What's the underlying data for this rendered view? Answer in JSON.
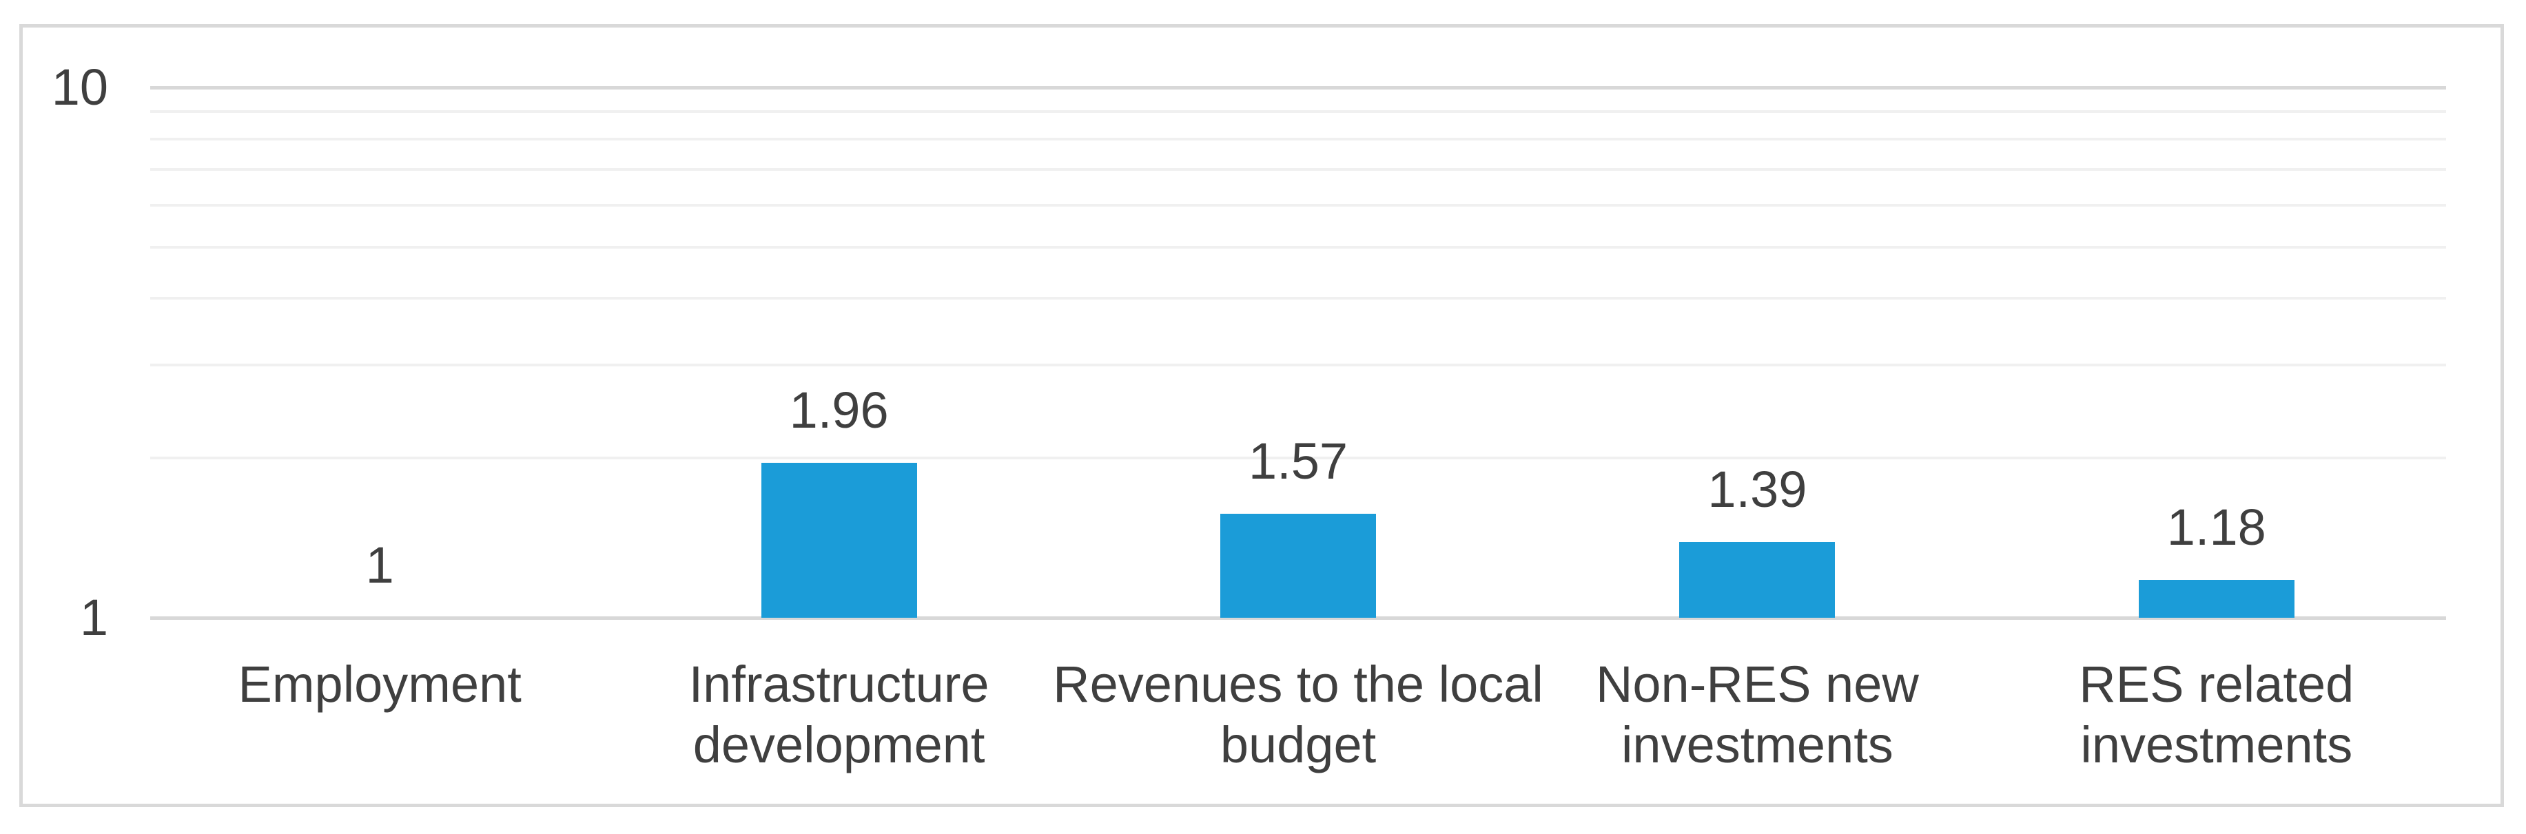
{
  "chart_data": {
    "type": "bar",
    "title": "",
    "xlabel": "",
    "ylabel": "",
    "categories": [
      "Employment",
      "Infrastructure development",
      "Revenues to the local budget",
      "Non-RES new investments",
      "RES related investments"
    ],
    "values": [
      1,
      1.96,
      1.57,
      1.39,
      1.18
    ],
    "data_labels": [
      "1",
      "1.96",
      "1.57",
      "1.39",
      "1.18"
    ],
    "yscale": "log",
    "ylim": [
      1,
      10
    ],
    "yticks": [
      {
        "value": 10,
        "label": "10"
      },
      {
        "value": 1,
        "label": "1"
      }
    ],
    "minor_gridlines": [
      2,
      3,
      4,
      5,
      6,
      7,
      8,
      9
    ],
    "grid": "on",
    "legend": "none"
  },
  "colors": {
    "bar": "#1B9CD8",
    "gridline_minor": "#F0F0F0",
    "gridline_major": "#D8D8D8",
    "axis_line": "#D8D8D8",
    "text": "#3F3F3F",
    "frame_border": "#D9D9D9",
    "background": "#FFFFFF"
  }
}
